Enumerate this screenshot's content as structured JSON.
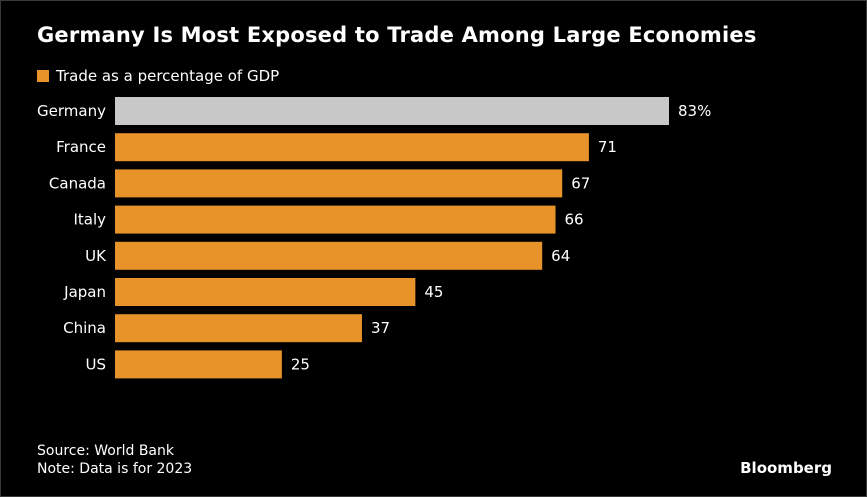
{
  "title": "Germany Is Most Exposed to Trade Among Large Economies",
  "source": "Source: World Bank",
  "note": "Note: Data is for 2023",
  "brand": "Bloomberg",
  "colors": {
    "background": "#000000",
    "bar": "#e8922a",
    "highlight": "#c8c8c8",
    "text": "#ffffff"
  },
  "chart_data": {
    "type": "bar",
    "orientation": "horizontal",
    "title": "Germany Is Most Exposed to Trade Among Large Economies",
    "categories": [
      "Germany",
      "France",
      "Canada",
      "Italy",
      "UK",
      "Japan",
      "China",
      "US"
    ],
    "series": [
      {
        "name": "Trade as a percentage of GDP",
        "values": [
          83,
          71,
          67,
          66,
          64,
          45,
          37,
          25
        ],
        "value_labels": [
          "83%",
          "71",
          "67",
          "66",
          "64",
          "45",
          "37",
          "25"
        ]
      }
    ],
    "highlighted_category": "Germany",
    "xlim": [
      0,
      83
    ],
    "grid": false,
    "legend_position": "top-left"
  }
}
